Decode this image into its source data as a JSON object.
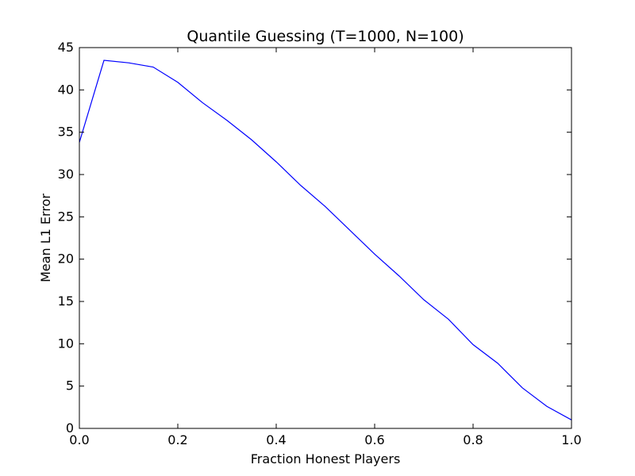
{
  "chart_data": {
    "type": "line",
    "title": "Quantile Guessing (T=1000, N=100)",
    "xlabel": "Fraction Honest Players",
    "ylabel": "Mean L1 Error",
    "xlim": [
      0.0,
      1.0
    ],
    "ylim": [
      0,
      45
    ],
    "xticks": [
      0.0,
      0.2,
      0.4,
      0.6,
      0.8,
      1.0
    ],
    "xtick_labels": [
      "0.0",
      "0.2",
      "0.4",
      "0.6",
      "0.8",
      "1.0"
    ],
    "yticks": [
      0,
      5,
      10,
      15,
      20,
      25,
      30,
      35,
      40,
      45
    ],
    "ytick_labels": [
      "0",
      "5",
      "10",
      "15",
      "20",
      "25",
      "30",
      "35",
      "40",
      "45"
    ],
    "grid": false,
    "legend": "none",
    "series": [
      {
        "color": "#0000ff",
        "x": [
          0.0,
          0.05,
          0.1,
          0.15,
          0.2,
          0.25,
          0.3,
          0.35,
          0.4,
          0.45,
          0.5,
          0.55,
          0.6,
          0.65,
          0.7,
          0.75,
          0.8,
          0.85,
          0.9,
          0.95,
          1.0
        ],
        "y": [
          33.8,
          43.5,
          43.2,
          42.7,
          40.9,
          38.5,
          36.4,
          34.1,
          31.5,
          28.7,
          26.2,
          23.4,
          20.6,
          18.0,
          15.2,
          12.9,
          9.9,
          7.7,
          4.8,
          2.6,
          1.0
        ]
      }
    ]
  }
}
